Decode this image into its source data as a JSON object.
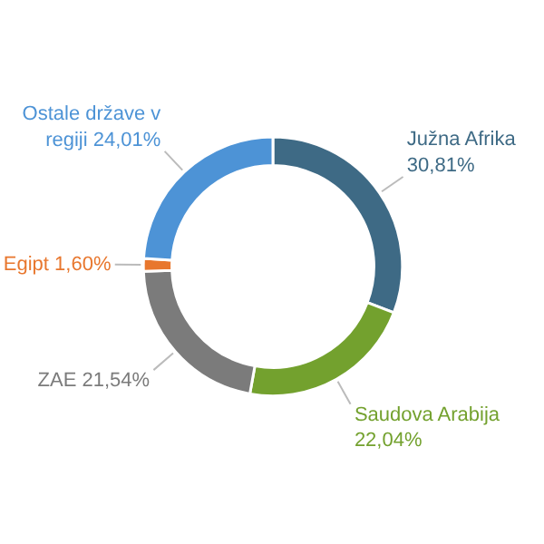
{
  "chart_data": {
    "type": "donut",
    "categories": [
      "Južna Afrika",
      "Saudova Arabija",
      "ZAE",
      "Egipt",
      "Ostale države v regiji"
    ],
    "values": [
      30.81,
      22.04,
      21.54,
      1.6,
      24.01
    ],
    "value_labels": [
      "30,81%",
      "22,04%",
      "21,54%",
      "1,60%",
      "24,01%"
    ],
    "colors": [
      "#3e6a85",
      "#73a12e",
      "#7b7b7b",
      "#e8772e",
      "#4d93d6"
    ]
  }
}
